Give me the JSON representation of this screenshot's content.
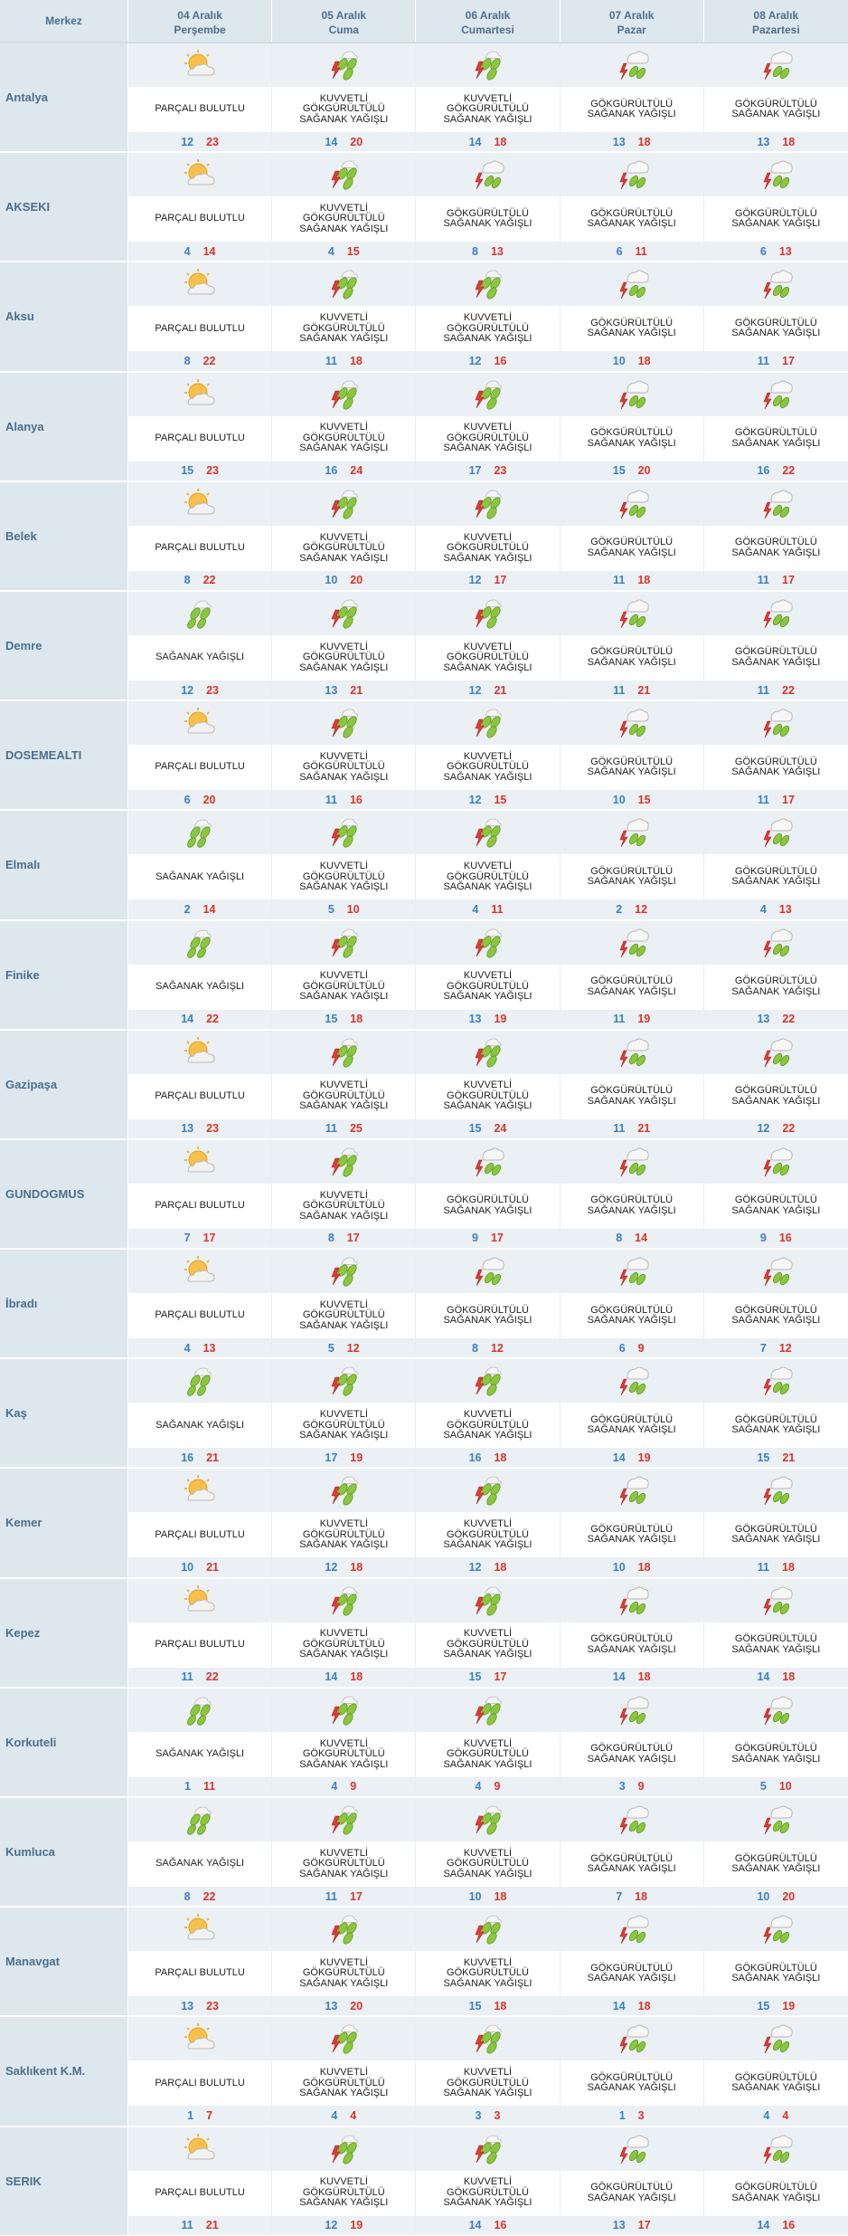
{
  "header": {
    "merkez_label": "Merkez",
    "days": [
      {
        "date": "04 Aralık",
        "weekday": "Perşembe"
      },
      {
        "date": "05 Aralık",
        "weekday": "Cuma"
      },
      {
        "date": "06 Aralık",
        "weekday": "Cumartesi"
      },
      {
        "date": "07 Aralık",
        "weekday": "Pazar"
      },
      {
        "date": "08 Aralık",
        "weekday": "Pazartesi"
      }
    ]
  },
  "conditions": {
    "pb": {
      "icon": "partly-cloudy-icon",
      "lines": [
        "PARÇALI BULUTLU"
      ]
    },
    "sy": {
      "icon": "rain-shower-icon",
      "lines": [
        "SAĞANAK YAĞIŞLI"
      ]
    },
    "kgsy": {
      "icon": "strong-thunder-shower-icon",
      "lines": [
        "KUVVETLİ",
        "GÖKGÜRÜLTÜLÜ",
        "SAĞANAK YAĞIŞLI"
      ]
    },
    "gsy": {
      "icon": "thunder-shower-icon",
      "lines": [
        "GÖKGÜRÜLTÜLÜ",
        "SAĞANAK YAĞIŞLI"
      ]
    }
  },
  "colors": {
    "min_temp": "#3b7fc4",
    "max_temp": "#d9342b",
    "header_bg": "#dde7ee",
    "cell_bg": "#eaf0f4"
  },
  "cities": [
    {
      "name": "Antalya",
      "days": [
        {
          "c": "pb",
          "min": "12",
          "max": "23"
        },
        {
          "c": "kgsy",
          "min": "14",
          "max": "20"
        },
        {
          "c": "kgsy",
          "min": "14",
          "max": "18"
        },
        {
          "c": "gsy",
          "min": "13",
          "max": "18"
        },
        {
          "c": "gsy",
          "min": "13",
          "max": "18"
        }
      ]
    },
    {
      "name": "AKSEKI",
      "days": [
        {
          "c": "pb",
          "min": "4",
          "max": "14"
        },
        {
          "c": "kgsy",
          "min": "4",
          "max": "15"
        },
        {
          "c": "gsy",
          "min": "8",
          "max": "13"
        },
        {
          "c": "gsy",
          "min": "6",
          "max": "11"
        },
        {
          "c": "gsy",
          "min": "6",
          "max": "13"
        }
      ]
    },
    {
      "name": "Aksu",
      "days": [
        {
          "c": "pb",
          "min": "8",
          "max": "22"
        },
        {
          "c": "kgsy",
          "min": "11",
          "max": "18"
        },
        {
          "c": "kgsy",
          "min": "12",
          "max": "16"
        },
        {
          "c": "gsy",
          "min": "10",
          "max": "18"
        },
        {
          "c": "gsy",
          "min": "11",
          "max": "17"
        }
      ]
    },
    {
      "name": "Alanya",
      "days": [
        {
          "c": "pb",
          "min": "15",
          "max": "23"
        },
        {
          "c": "kgsy",
          "min": "16",
          "max": "24"
        },
        {
          "c": "kgsy",
          "min": "17",
          "max": "23"
        },
        {
          "c": "gsy",
          "min": "15",
          "max": "20"
        },
        {
          "c": "gsy",
          "min": "16",
          "max": "22"
        }
      ]
    },
    {
      "name": "Belek",
      "days": [
        {
          "c": "pb",
          "min": "8",
          "max": "22"
        },
        {
          "c": "kgsy",
          "min": "10",
          "max": "20"
        },
        {
          "c": "kgsy",
          "min": "12",
          "max": "17"
        },
        {
          "c": "gsy",
          "min": "11",
          "max": "18"
        },
        {
          "c": "gsy",
          "min": "11",
          "max": "17"
        }
      ]
    },
    {
      "name": "Demre",
      "days": [
        {
          "c": "sy",
          "min": "12",
          "max": "23"
        },
        {
          "c": "kgsy",
          "min": "13",
          "max": "21"
        },
        {
          "c": "kgsy",
          "min": "12",
          "max": "21"
        },
        {
          "c": "gsy",
          "min": "11",
          "max": "21"
        },
        {
          "c": "gsy",
          "min": "11",
          "max": "22"
        }
      ]
    },
    {
      "name": "DOSEMEALTI",
      "days": [
        {
          "c": "pb",
          "min": "6",
          "max": "20"
        },
        {
          "c": "kgsy",
          "min": "11",
          "max": "16"
        },
        {
          "c": "kgsy",
          "min": "12",
          "max": "15"
        },
        {
          "c": "gsy",
          "min": "10",
          "max": "15"
        },
        {
          "c": "gsy",
          "min": "11",
          "max": "17"
        }
      ]
    },
    {
      "name": "Elmalı",
      "days": [
        {
          "c": "sy",
          "min": "2",
          "max": "14"
        },
        {
          "c": "kgsy",
          "min": "5",
          "max": "10"
        },
        {
          "c": "kgsy",
          "min": "4",
          "max": "11"
        },
        {
          "c": "gsy",
          "min": "2",
          "max": "12"
        },
        {
          "c": "gsy",
          "min": "4",
          "max": "13"
        }
      ]
    },
    {
      "name": "Finike",
      "days": [
        {
          "c": "sy",
          "min": "14",
          "max": "22"
        },
        {
          "c": "kgsy",
          "min": "15",
          "max": "18"
        },
        {
          "c": "kgsy",
          "min": "13",
          "max": "19"
        },
        {
          "c": "gsy",
          "min": "11",
          "max": "19"
        },
        {
          "c": "gsy",
          "min": "13",
          "max": "22"
        }
      ]
    },
    {
      "name": "Gazipaşa",
      "days": [
        {
          "c": "pb",
          "min": "13",
          "max": "23"
        },
        {
          "c": "kgsy",
          "min": "11",
          "max": "25"
        },
        {
          "c": "kgsy",
          "min": "15",
          "max": "24"
        },
        {
          "c": "gsy",
          "min": "11",
          "max": "21"
        },
        {
          "c": "gsy",
          "min": "12",
          "max": "22"
        }
      ]
    },
    {
      "name": "GUNDOGMUS",
      "days": [
        {
          "c": "pb",
          "min": "7",
          "max": "17"
        },
        {
          "c": "kgsy",
          "min": "8",
          "max": "17"
        },
        {
          "c": "gsy",
          "min": "9",
          "max": "17"
        },
        {
          "c": "gsy",
          "min": "8",
          "max": "14"
        },
        {
          "c": "gsy",
          "min": "9",
          "max": "16"
        }
      ]
    },
    {
      "name": "İbradı",
      "days": [
        {
          "c": "pb",
          "min": "4",
          "max": "13"
        },
        {
          "c": "kgsy",
          "min": "5",
          "max": "12"
        },
        {
          "c": "gsy",
          "min": "8",
          "max": "12"
        },
        {
          "c": "gsy",
          "min": "6",
          "max": "9"
        },
        {
          "c": "gsy",
          "min": "7",
          "max": "12"
        }
      ]
    },
    {
      "name": "Kaş",
      "days": [
        {
          "c": "sy",
          "min": "16",
          "max": "21"
        },
        {
          "c": "kgsy",
          "min": "17",
          "max": "19"
        },
        {
          "c": "kgsy",
          "min": "16",
          "max": "18"
        },
        {
          "c": "gsy",
          "min": "14",
          "max": "19"
        },
        {
          "c": "gsy",
          "min": "15",
          "max": "21"
        }
      ]
    },
    {
      "name": "Kemer",
      "days": [
        {
          "c": "pb",
          "min": "10",
          "max": "21"
        },
        {
          "c": "kgsy",
          "min": "12",
          "max": "18"
        },
        {
          "c": "kgsy",
          "min": "12",
          "max": "18"
        },
        {
          "c": "gsy",
          "min": "10",
          "max": "18"
        },
        {
          "c": "gsy",
          "min": "11",
          "max": "18"
        }
      ]
    },
    {
      "name": "Kepez",
      "days": [
        {
          "c": "pb",
          "min": "11",
          "max": "22"
        },
        {
          "c": "kgsy",
          "min": "14",
          "max": "18"
        },
        {
          "c": "kgsy",
          "min": "15",
          "max": "17"
        },
        {
          "c": "gsy",
          "min": "14",
          "max": "18"
        },
        {
          "c": "gsy",
          "min": "14",
          "max": "18"
        }
      ]
    },
    {
      "name": "Korkuteli",
      "days": [
        {
          "c": "sy",
          "min": "1",
          "max": "11"
        },
        {
          "c": "kgsy",
          "min": "4",
          "max": "9"
        },
        {
          "c": "kgsy",
          "min": "4",
          "max": "9"
        },
        {
          "c": "gsy",
          "min": "3",
          "max": "9"
        },
        {
          "c": "gsy",
          "min": "5",
          "max": "10"
        }
      ]
    },
    {
      "name": "Kumluca",
      "days": [
        {
          "c": "sy",
          "min": "8",
          "max": "22"
        },
        {
          "c": "kgsy",
          "min": "11",
          "max": "17"
        },
        {
          "c": "kgsy",
          "min": "10",
          "max": "18"
        },
        {
          "c": "gsy",
          "min": "7",
          "max": "18"
        },
        {
          "c": "gsy",
          "min": "10",
          "max": "20"
        }
      ]
    },
    {
      "name": "Manavgat",
      "days": [
        {
          "c": "pb",
          "min": "13",
          "max": "23"
        },
        {
          "c": "kgsy",
          "min": "13",
          "max": "20"
        },
        {
          "c": "kgsy",
          "min": "15",
          "max": "18"
        },
        {
          "c": "gsy",
          "min": "14",
          "max": "18"
        },
        {
          "c": "gsy",
          "min": "15",
          "max": "19"
        }
      ]
    },
    {
      "name": "Saklıkent K.M.",
      "days": [
        {
          "c": "pb",
          "min": "1",
          "max": "7"
        },
        {
          "c": "kgsy",
          "min": "4",
          "max": "4"
        },
        {
          "c": "kgsy",
          "min": "3",
          "max": "3"
        },
        {
          "c": "gsy",
          "min": "1",
          "max": "3"
        },
        {
          "c": "gsy",
          "min": "4",
          "max": "4"
        }
      ]
    },
    {
      "name": "SERIK",
      "days": [
        {
          "c": "pb",
          "min": "11",
          "max": "21"
        },
        {
          "c": "kgsy",
          "min": "12",
          "max": "19"
        },
        {
          "c": "kgsy",
          "min": "14",
          "max": "16"
        },
        {
          "c": "gsy",
          "min": "13",
          "max": "17"
        },
        {
          "c": "gsy",
          "min": "14",
          "max": "16"
        }
      ]
    }
  ]
}
